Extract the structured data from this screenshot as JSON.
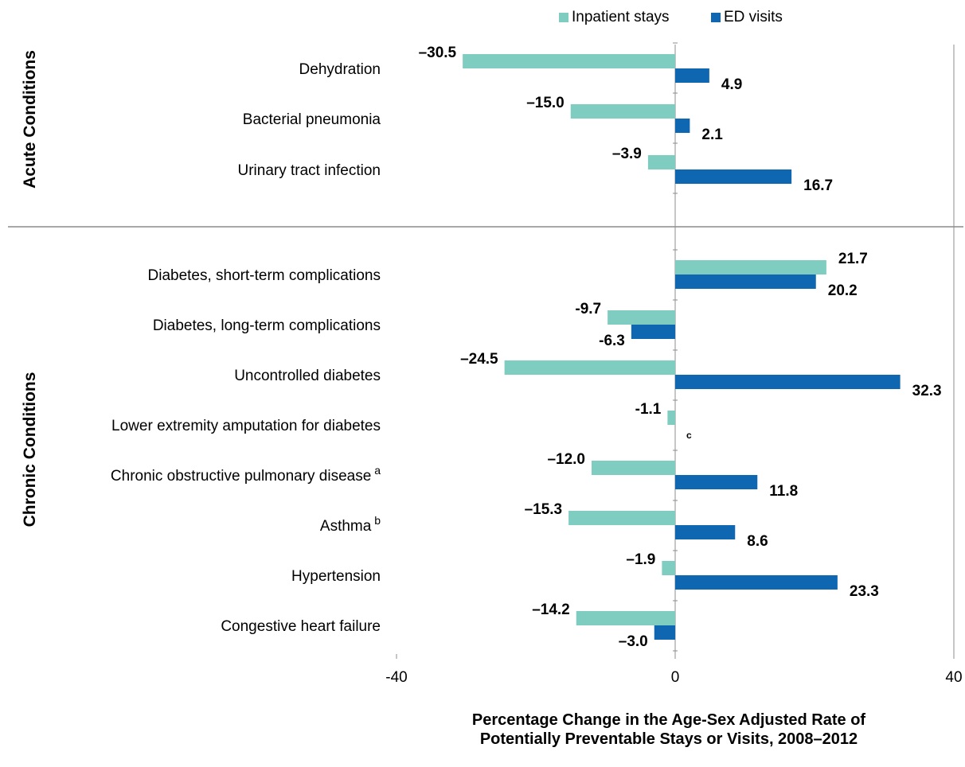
{
  "chart_data": {
    "type": "bar",
    "orientation": "horizontal",
    "legend": {
      "position": "top",
      "entries": [
        {
          "label": "Inpatient stays",
          "color": "#7fcdc1"
        },
        {
          "label": "ED visits",
          "color": "#0f67b1"
        }
      ]
    },
    "groups": [
      {
        "label": "Acute Conditions",
        "start": 0,
        "count": 3
      },
      {
        "label": "Chronic Conditions",
        "start": 3,
        "count": 8
      }
    ],
    "categories": [
      {
        "label": "Dehydration",
        "sup": ""
      },
      {
        "label": "Bacterial pneumonia",
        "sup": ""
      },
      {
        "label": "Urinary tract infection",
        "sup": ""
      },
      {
        "label": "Diabetes, short-term complications",
        "sup": ""
      },
      {
        "label": "Diabetes, long-term complications",
        "sup": ""
      },
      {
        "label": "Uncontrolled diabetes",
        "sup": ""
      },
      {
        "label": "Lower extremity amputation for diabetes",
        "sup": ""
      },
      {
        "label": "Chronic obstructive pulmonary disease",
        "sup": "a"
      },
      {
        "label": "Asthma",
        "sup": "b"
      },
      {
        "label": "Hypertension",
        "sup": ""
      },
      {
        "label": "Congestive heart failure",
        "sup": ""
      }
    ],
    "series": [
      {
        "name": "Inpatient stays",
        "color": "#7fcdc1",
        "values": [
          -30.5,
          -15.0,
          -3.9,
          21.7,
          -9.7,
          -24.5,
          -1.1,
          -12.0,
          -15.3,
          -1.9,
          -14.2
        ],
        "labels": [
          "–30.5",
          "–15.0",
          "–3.9",
          "21.7",
          "-9.7",
          "–24.5",
          "-1.1",
          "–12.0",
          "–15.3",
          "–1.9",
          "–14.2"
        ]
      },
      {
        "name": "ED visits",
        "color": "#0f67b1",
        "values": [
          4.9,
          2.1,
          16.7,
          20.2,
          -6.3,
          32.3,
          null,
          11.8,
          8.6,
          23.3,
          -3.0
        ],
        "labels": [
          "4.9",
          "2.1",
          "16.7",
          "20.2",
          "-6.3",
          "32.3",
          "c",
          "11.8",
          "8.6",
          "23.3",
          "–3.0"
        ]
      }
    ],
    "xlim": [
      -40,
      40
    ],
    "xticks": [
      -40,
      0,
      40
    ],
    "xtick_labels": [
      "-40",
      "0",
      "40"
    ],
    "xlabel": "Percentage Change in the Age-Sex Adjusted Rate of Potentially Preventable Stays or Visits, 2008–2012",
    "xlabel_lines": [
      "Percentage Change in the Age-Sex Adjusted Rate of",
      "Potentially Preventable Stays or Visits, 2008–2012"
    ],
    "grid": false
  }
}
